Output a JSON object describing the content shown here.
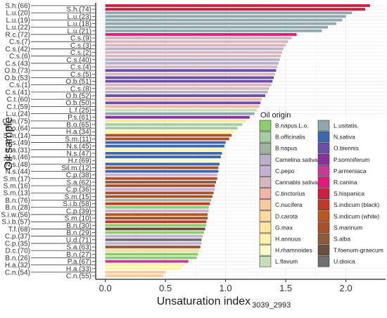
{
  "chart_data": {
    "type": "bar",
    "orientation": "horizontal",
    "xlabel": "Unsaturation index",
    "xlabel_sub": "3039_2993",
    "ylabel": "Oil sample",
    "xlim": [
      -0.08,
      2.33
    ],
    "x_ticks": [
      0.0,
      0.5,
      1.0,
      1.5,
      2.0
    ],
    "x_tick_labels": [
      "0.0",
      "0.5",
      "1.0",
      "1.5",
      "2.0"
    ],
    "grid": true,
    "legend_title": "Oil origin",
    "legend_position": "center-right",
    "groups": [
      {
        "name": "B.napus.L.o.",
        "color": "#8ccf6a"
      },
      {
        "name": "B.officinalis",
        "color": "#a5cfa0"
      },
      {
        "name": "B.napus",
        "color": "#9db5a0"
      },
      {
        "name": "Camelina sativa",
        "color": "#b8b2c8"
      },
      {
        "name": "C.pepo",
        "color": "#c5b1d6"
      },
      {
        "name": "Cannabis sativa",
        "color": "#d8b6c0"
      },
      {
        "name": "C.tinctorius",
        "color": "#f3b6a5"
      },
      {
        "name": "C.nucifera",
        "color": "#fbc99a"
      },
      {
        "name": "D.carota",
        "color": "#fdd99a"
      },
      {
        "name": "G.max",
        "color": "#fde79a"
      },
      {
        "name": "H.annuus",
        "color": "#fff3a8"
      },
      {
        "name": "H.rhamnoides",
        "color": "#fafac8"
      },
      {
        "name": "L.flavum",
        "color": "#c7dfb8"
      },
      {
        "name": "L.usitatis.",
        "color": "#90a8ad"
      },
      {
        "name": "N.sativa",
        "color": "#3d66b3"
      },
      {
        "name": "O.biennis",
        "color": "#6a4fa8"
      },
      {
        "name": "P.somniferum",
        "color": "#8a2f9e"
      },
      {
        "name": "P.armeniaca",
        "color": "#c83a93"
      },
      {
        "name": "R.canina",
        "color": "#e0197a"
      },
      {
        "name": "S.hispanica",
        "color": "#cf1f3f"
      },
      {
        "name": "S.indicum (black)",
        "color": "#c03a24"
      },
      {
        "name": "S.indicum (white)",
        "color": "#bf5620"
      },
      {
        "name": "S.marinum",
        "color": "#a9522a"
      },
      {
        "name": "S.alba",
        "color": "#8e5a3a"
      },
      {
        "name": "T.foenum-graecum",
        "color": "#6b4e3d"
      },
      {
        "name": "U.dioica",
        "color": "#707070"
      }
    ],
    "bars": [
      {
        "label": "S.h.(66)",
        "value": 2.2,
        "group": "S.hispanica"
      },
      {
        "label": "S.h.(74)",
        "value": 2.16,
        "group": "S.hispanica"
      },
      {
        "label": "L.u.(20)",
        "value": 2.05,
        "group": "L.usitatis."
      },
      {
        "label": "L.u.(23)",
        "value": 2.0,
        "group": "L.usitatis."
      },
      {
        "label": "L.u.(19)",
        "value": 1.97,
        "group": "L.usitatis."
      },
      {
        "label": "L.u.(18)",
        "value": 1.92,
        "group": "L.usitatis."
      },
      {
        "label": "L.u.(22)",
        "value": 1.85,
        "group": "L.usitatis."
      },
      {
        "label": "L.u.(21)",
        "value": 1.8,
        "group": "L.usitatis."
      },
      {
        "label": "R.c.(72)",
        "value": 1.59,
        "group": "R.canina"
      },
      {
        "label": "C.s.(9)",
        "value": 1.55,
        "group": "Cannabis sativa"
      },
      {
        "label": "C.s.(7)",
        "value": 1.52,
        "group": "Cannabis sativa"
      },
      {
        "label": "C.s.(3)",
        "value": 1.5,
        "group": "Cannabis sativa"
      },
      {
        "label": "C.s.(42)",
        "value": 1.48,
        "group": "Camelina sativa"
      },
      {
        "label": "C.s.(2)",
        "value": 1.47,
        "group": "Cannabis sativa"
      },
      {
        "label": "C.s.(6)",
        "value": 1.46,
        "group": "Cannabis sativa"
      },
      {
        "label": "C.s.(40)",
        "value": 1.45,
        "group": "Camelina sativa"
      },
      {
        "label": "C.s.(43)",
        "value": 1.44,
        "group": "Camelina sativa"
      },
      {
        "label": "C.s.(4)",
        "value": 1.43,
        "group": "Cannabis sativa"
      },
      {
        "label": "O.b.(73)",
        "value": 1.42,
        "group": "O.biennis"
      },
      {
        "label": "C.s.(5)",
        "value": 1.41,
        "group": "Cannabis sativa"
      },
      {
        "label": "O.b.(53)",
        "value": 1.4,
        "group": "O.biennis"
      },
      {
        "label": "O.b.(51)",
        "value": 1.39,
        "group": "O.biennis"
      },
      {
        "label": "C.s.(1)",
        "value": 1.38,
        "group": "Cannabis sativa"
      },
      {
        "label": "C.s.(8)",
        "value": 1.36,
        "group": "Cannabis sativa"
      },
      {
        "label": "C.s.(41)",
        "value": 1.35,
        "group": "Camelina sativa"
      },
      {
        "label": "O.b.(52)",
        "value": 1.33,
        "group": "O.biennis"
      },
      {
        "label": "C.t.(60)",
        "value": 1.3,
        "group": "C.tinctorius"
      },
      {
        "label": "O.b.(50)",
        "value": 1.29,
        "group": "O.biennis"
      },
      {
        "label": "C.t.(59)",
        "value": 1.28,
        "group": "C.tinctorius"
      },
      {
        "label": "L.f.(25)",
        "value": 1.26,
        "group": "L.flavum"
      },
      {
        "label": "L.u.(24)",
        "value": 1.24,
        "group": "L.usitatis."
      },
      {
        "label": "P.s.(61)",
        "value": 1.2,
        "group": "P.somniferum"
      },
      {
        "label": "G.m.(75)",
        "value": 1.17,
        "group": "G.max"
      },
      {
        "label": "B.o.(65)",
        "value": 1.14,
        "group": "B.officinalis"
      },
      {
        "label": "B.o.(64)",
        "value": 1.1,
        "group": "B.officinalis"
      },
      {
        "label": "H.a.(34)",
        "value": 1.07,
        "group": "H.annuus"
      },
      {
        "label": "S.m.(14)",
        "value": 1.05,
        "group": "S.marinum"
      },
      {
        "label": "S.m.(11)",
        "value": 1.03,
        "group": "S.marinum"
      },
      {
        "label": "N.s.(49)",
        "value": 1.0,
        "group": "N.sativa"
      },
      {
        "label": "N.s.(45)",
        "value": 0.99,
        "group": "N.sativa"
      },
      {
        "label": "H.a.(31)",
        "value": 0.98,
        "group": "H.annuus"
      },
      {
        "label": "N.s.(47)",
        "value": 0.97,
        "group": "N.sativa"
      },
      {
        "label": "N.s.(46)",
        "value": 0.96,
        "group": "N.sativa"
      },
      {
        "label": "H.r.(69)",
        "value": 0.95,
        "group": "H.rhamnoides"
      },
      {
        "label": "N.s.(48)",
        "value": 0.95,
        "group": "N.sativa"
      },
      {
        "label": "Sil.m.(12)",
        "value": 0.94,
        "group": "S.marinum"
      },
      {
        "label": "N.s.(44)",
        "value": 0.94,
        "group": "N.sativa"
      },
      {
        "label": "C.p.(38)",
        "value": 0.93,
        "group": "C.pepo"
      },
      {
        "label": "S.m.(17)",
        "value": 0.93,
        "group": "S.marinum"
      },
      {
        "label": "S.a.(62)",
        "value": 0.92,
        "group": "S.alba"
      },
      {
        "label": "S.m.(16)",
        "value": 0.91,
        "group": "S.marinum"
      },
      {
        "label": "C.p.(36)",
        "value": 0.91,
        "group": "C.pepo"
      },
      {
        "label": "S.m.(13)",
        "value": 0.9,
        "group": "S.marinum"
      },
      {
        "label": "S.m.(15)",
        "value": 0.89,
        "group": "S.marinum"
      },
      {
        "label": "B.n.(76)",
        "value": 0.88,
        "group": "B.napus"
      },
      {
        "label": "S.i.b.(58)",
        "value": 0.87,
        "group": "S.indicum (black)"
      },
      {
        "label": "B.n.(28)",
        "value": 0.86,
        "group": "B.napus.L.o."
      },
      {
        "label": "C.p.(39)",
        "value": 0.86,
        "group": "C.pepo"
      },
      {
        "label": "S.i.w.(56)",
        "value": 0.85,
        "group": "S.indicum (white)"
      },
      {
        "label": "S.m.(10)",
        "value": 0.85,
        "group": "S.marinum"
      },
      {
        "label": "S.i.b.(57)",
        "value": 0.84,
        "group": "S.indicum (black)"
      },
      {
        "label": "B.n.(30)",
        "value": 0.84,
        "group": "B.napus.L.o."
      },
      {
        "label": "T.f.(68)",
        "value": 0.83,
        "group": "T.foenum-graecum"
      },
      {
        "label": "B.n.(29)",
        "value": 0.82,
        "group": "B.napus.L.o."
      },
      {
        "label": "C.p.(37)",
        "value": 0.81,
        "group": "C.pepo"
      },
      {
        "label": "U.d.(71)",
        "value": 0.8,
        "group": "U.dioica"
      },
      {
        "label": "C.p.(35)",
        "value": 0.8,
        "group": "C.pepo"
      },
      {
        "label": "S.a.(63)",
        "value": 0.79,
        "group": "S.alba"
      },
      {
        "label": "D.c.(70)",
        "value": 0.78,
        "group": "D.carota"
      },
      {
        "label": "B.n.(27)",
        "value": 0.77,
        "group": "B.napus.L.o."
      },
      {
        "label": "B.n.(26)",
        "value": 0.76,
        "group": "B.napus.L.o."
      },
      {
        "label": "P.a.(67)",
        "value": 0.69,
        "group": "P.armeniaca"
      },
      {
        "label": "H.a.(32)",
        "value": 0.66,
        "group": "H.annuus"
      },
      {
        "label": "H.a.(33)",
        "value": 0.63,
        "group": "H.annuus"
      },
      {
        "label": "C.n.(54)",
        "value": 0.5,
        "group": "C.nucifera"
      },
      {
        "label": "C.n.(55)",
        "value": 0.48,
        "group": "C.nucifera"
      }
    ]
  }
}
